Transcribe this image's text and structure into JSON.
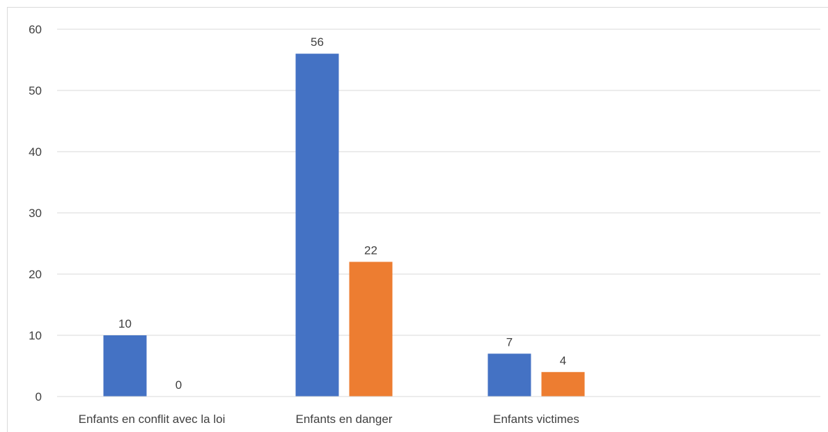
{
  "chart_data": {
    "type": "bar",
    "title": "",
    "xlabel": "",
    "ylabel": "",
    "categories": [
      "Enfants en conflit avec la loi",
      "Enfants en danger",
      "Enfants victimes"
    ],
    "series": [
      {
        "values": [
          10,
          56,
          7
        ],
        "color": "#4472c4"
      },
      {
        "values": [
          0,
          22,
          4
        ],
        "color": "#ed7d31"
      }
    ],
    "ylim": [
      0,
      60
    ],
    "yticks": [
      0,
      10,
      20,
      30,
      40,
      50,
      60
    ],
    "grid": true,
    "legend": "none",
    "data_labels": true
  }
}
